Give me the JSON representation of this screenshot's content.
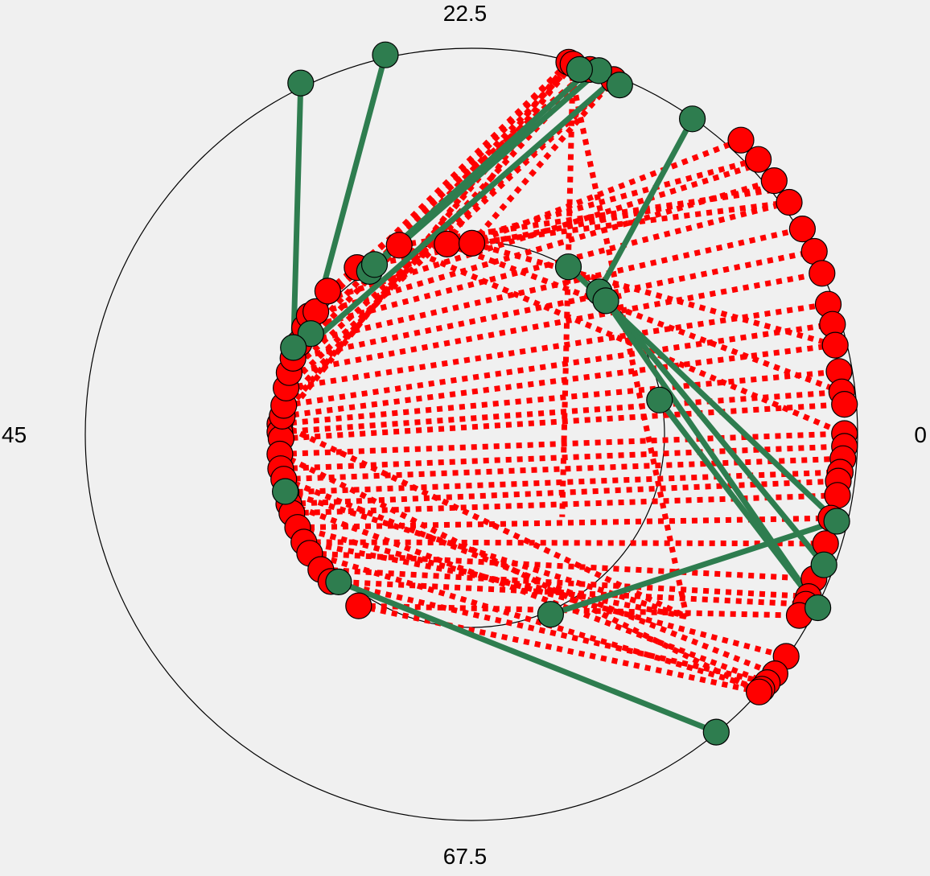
{
  "chart_data": {
    "type": "scatter",
    "subtype": "polar-circle-diagram",
    "title": "",
    "angle_labels": [
      "22.5",
      "45",
      "67.5",
      "0"
    ],
    "grid": true,
    "colors": {
      "background": "#f0f0f0",
      "circle": "#000000",
      "segment_red": "#ff0000",
      "segment_green": "#2e7d4f",
      "marker_red": "#ff0000",
      "marker_green": "#2e7d4f",
      "marker_edge": "#000000"
    },
    "series": [
      {
        "style": "dotted",
        "color": "#ff0000",
        "segments": [
          [
            [
              -0.496,
              0.027
            ],
            [
              0.952,
              0.163
            ]
          ],
          [
            [
              -0.496,
              0.006
            ],
            [
              0.959,
              0.11
            ]
          ],
          [
            [
              -0.493,
              -0.011
            ],
            [
              0.966,
              0.078
            ]
          ],
          [
            [
              -0.49,
              0.047
            ],
            [
              0.942,
              0.231
            ]
          ],
          [
            [
              -0.486,
              0.075
            ],
            [
              0.935,
              0.285
            ]
          ],
          [
            [
              -0.48,
              0.12
            ],
            [
              0.924,
              0.337
            ]
          ],
          [
            [
              -0.472,
              0.16
            ],
            [
              0.908,
              0.417
            ]
          ],
          [
            [
              -0.462,
              0.197
            ],
            [
              0.888,
              0.474
            ]
          ],
          [
            [
              -0.446,
              0.236
            ],
            [
              0.857,
              0.532
            ]
          ],
          [
            [
              -0.432,
              0.276
            ],
            [
              0.823,
              0.601
            ]
          ],
          [
            [
              -0.42,
              0.307
            ],
            [
              0.784,
              0.657
            ]
          ],
          [
            [
              -0.404,
              0.341
            ],
            [
              0.746,
              0.7
            ]
          ],
          [
            [
              -0.496,
              -0.051
            ],
            [
              0.966,
              0.002
            ]
          ],
          [
            [
              -0.494,
              -0.089
            ],
            [
              0.966,
              -0.031
            ]
          ],
          [
            [
              -0.486,
              -0.116
            ],
            [
              0.962,
              -0.063
            ]
          ],
          [
            [
              -0.48,
              -0.15
            ],
            [
              0.955,
              -0.098
            ]
          ],
          [
            [
              -0.473,
              -0.18
            ],
            [
              0.95,
              -0.121
            ]
          ],
          [
            [
              -0.465,
              -0.204
            ],
            [
              0.948,
              -0.158
            ]
          ],
          [
            [
              -0.45,
              -0.241
            ],
            [
              0.931,
              -0.217
            ]
          ],
          [
            [
              -0.434,
              -0.279
            ],
            [
              0.917,
              -0.283
            ]
          ],
          [
            [
              -0.419,
              -0.308
            ],
            [
              0.887,
              -0.374
            ]
          ],
          [
            [
              -0.39,
              -0.35
            ],
            [
              0.873,
              -0.42
            ]
          ],
          [
            [
              -0.364,
              -0.381
            ],
            [
              0.866,
              -0.44
            ]
          ],
          [
            [
              -0.292,
              -0.444
            ],
            [
              0.849,
              -0.469
            ]
          ],
          [
            [
              -0.296,
              0.432
            ],
            [
              0.79,
              0.643
            ]
          ],
          [
            [
              -0.187,
              0.49
            ],
            [
              0.796,
              0.635
            ]
          ],
          [
            [
              -0.063,
              0.493
            ],
            [
              0.743,
              0.712
            ]
          ],
          [
            [
              0.001,
              0.495
            ],
            [
              0.698,
              0.762
            ]
          ],
          [
            [
              -0.496,
              0.027
            ],
            [
              0.252,
              0.964
            ]
          ],
          [
            [
              -0.49,
              0.047
            ],
            [
              0.263,
              0.959
            ]
          ],
          [
            [
              -0.486,
              0.075
            ],
            [
              0.307,
              0.945
            ]
          ],
          [
            [
              -0.48,
              0.12
            ],
            [
              0.368,
              0.919
            ]
          ],
          [
            [
              -0.472,
              0.16
            ],
            [
              0.368,
              0.919
            ]
          ],
          [
            [
              -0.462,
              0.197
            ],
            [
              0.263,
              0.959
            ]
          ],
          [
            [
              -0.446,
              0.236
            ],
            [
              0.252,
              0.964
            ]
          ],
          [
            [
              -0.403,
              0.318
            ],
            [
              0.252,
              0.964
            ]
          ],
          [
            [
              -0.372,
              0.371
            ],
            [
              0.307,
              0.945
            ]
          ],
          [
            [
              -0.496,
              -0.051
            ],
            [
              0.745,
              -0.667
            ]
          ],
          [
            [
              -0.486,
              -0.116
            ],
            [
              0.786,
              -0.62
            ]
          ],
          [
            [
              -0.473,
              -0.18
            ],
            [
              0.766,
              -0.643
            ]
          ],
          [
            [
              -0.45,
              -0.241
            ],
            [
              0.815,
              -0.575
            ]
          ],
          [
            [
              -0.419,
              -0.308
            ],
            [
              0.752,
              -0.66
            ]
          ],
          [
            [
              -0.364,
              -0.381
            ],
            [
              0.766,
              -0.643
            ]
          ],
          [
            [
              -0.292,
              -0.444
            ],
            [
              0.745,
              -0.667
            ]
          ],
          [
            [
              -0.187,
              0.49
            ],
            [
              0.966,
              0.002
            ]
          ],
          [
            [
              -0.063,
              0.493
            ],
            [
              0.959,
              0.11
            ]
          ],
          [
            [
              0.001,
              0.495
            ],
            [
              0.942,
              0.231
            ]
          ],
          [
            [
              0.001,
              0.495
            ],
            [
              0.823,
              0.601
            ]
          ],
          [
            [
              -0.063,
              0.493
            ],
            [
              0.252,
              0.964
            ]
          ],
          [
            [
              0.001,
              0.495
            ],
            [
              0.368,
              0.919
            ]
          ],
          [
            [
              -0.496,
              0.027
            ],
            [
              0.557,
              -0.472
            ]
          ],
          [
            [
              -0.48,
              -0.15
            ],
            [
              0.557,
              -0.472
            ]
          ],
          [
            [
              -0.434,
              -0.279
            ],
            [
              0.557,
              -0.472
            ]
          ],
          [
            [
              0.252,
              0.964
            ],
            [
              0.557,
              -0.472
            ]
          ],
          [
            [
              0.263,
              0.959
            ],
            [
              0.235,
              -0.214
            ]
          ]
        ]
      },
      {
        "style": "solid",
        "color": "#2e7d4f",
        "segments": [
          [
            [
              -0.442,
              0.91
            ],
            [
              -0.461,
              0.225
            ]
          ],
          [
            [
              -0.223,
              0.983
            ],
            [
              -0.416,
              0.261
            ]
          ],
          [
            [
              0.307,
              0.945
            ],
            [
              -0.251,
              0.44
            ]
          ],
          [
            [
              0.33,
              0.942
            ],
            [
              -0.264,
              0.422
            ]
          ],
          [
            [
              0.368,
              0.919
            ],
            [
              -0.466,
              0.193
            ]
          ],
          [
            [
              0.572,
              0.817
            ],
            [
              0.322,
              0.355
            ]
          ],
          [
            [
              0.251,
              0.434
            ],
            [
              0.946,
              -0.225
            ]
          ],
          [
            [
              0.331,
              0.369
            ],
            [
              0.913,
              -0.338
            ]
          ],
          [
            [
              0.348,
              0.346
            ],
            [
              0.897,
              -0.449
            ]
          ],
          [
            [
              0.487,
              0.089
            ],
            [
              0.897,
              -0.449
            ]
          ],
          [
            [
              0.205,
              -0.466
            ],
            [
              0.946,
              -0.225
            ]
          ],
          [
            [
              -0.344,
              -0.382
            ],
            [
              0.634,
              -0.771
            ]
          ]
        ]
      },
      {
        "style": "markers",
        "color": "#ff0000",
        "points": [
          [
            0.252,
            0.964
          ],
          [
            0.263,
            0.959
          ],
          [
            0.307,
            0.945
          ],
          [
            0.33,
            0.942
          ],
          [
            0.368,
            0.919
          ],
          [
            0.698,
            0.762
          ],
          [
            0.743,
            0.712
          ],
          [
            0.784,
            0.657
          ],
          [
            0.823,
            0.601
          ],
          [
            0.857,
            0.532
          ],
          [
            0.888,
            0.474
          ],
          [
            0.908,
            0.417
          ],
          [
            0.924,
            0.337
          ],
          [
            0.935,
            0.285
          ],
          [
            0.942,
            0.231
          ],
          [
            0.952,
            0.163
          ],
          [
            0.959,
            0.11
          ],
          [
            0.966,
            0.078
          ],
          [
            0.966,
            0.002
          ],
          [
            0.966,
            -0.031
          ],
          [
            0.962,
            -0.063
          ],
          [
            0.955,
            -0.098
          ],
          [
            0.95,
            -0.121
          ],
          [
            0.948,
            -0.158
          ],
          [
            0.931,
            -0.217
          ],
          [
            0.917,
            -0.283
          ],
          [
            0.887,
            -0.374
          ],
          [
            0.873,
            -0.42
          ],
          [
            0.866,
            -0.44
          ],
          [
            0.849,
            -0.469
          ],
          [
            0.815,
            -0.575
          ],
          [
            0.786,
            -0.62
          ],
          [
            0.766,
            -0.643
          ],
          [
            0.752,
            -0.66
          ],
          [
            0.745,
            -0.667
          ],
          [
            -0.496,
            0.027
          ],
          [
            -0.496,
            0.006
          ],
          [
            -0.493,
            -0.011
          ],
          [
            -0.49,
            0.047
          ],
          [
            -0.486,
            0.075
          ],
          [
            -0.48,
            0.12
          ],
          [
            -0.472,
            0.16
          ],
          [
            -0.462,
            0.197
          ],
          [
            -0.446,
            0.236
          ],
          [
            -0.432,
            0.276
          ],
          [
            -0.42,
            0.307
          ],
          [
            -0.403,
            0.318
          ],
          [
            -0.372,
            0.371
          ],
          [
            -0.496,
            -0.051
          ],
          [
            -0.494,
            -0.089
          ],
          [
            -0.486,
            -0.116
          ],
          [
            -0.48,
            -0.15
          ],
          [
            -0.473,
            -0.18
          ],
          [
            -0.465,
            -0.204
          ],
          [
            -0.45,
            -0.241
          ],
          [
            -0.434,
            -0.279
          ],
          [
            -0.419,
            -0.308
          ],
          [
            -0.39,
            -0.35
          ],
          [
            -0.364,
            -0.381
          ],
          [
            -0.292,
            -0.444
          ],
          [
            -0.296,
            0.432
          ],
          [
            -0.187,
            0.49
          ],
          [
            -0.063,
            0.493
          ],
          [
            0.001,
            0.495
          ]
        ]
      },
      {
        "style": "markers",
        "color": "#2e7d4f",
        "points": [
          [
            -0.442,
            0.91
          ],
          [
            -0.223,
            0.983
          ],
          [
            0.33,
            0.942
          ],
          [
            0.28,
            0.945
          ],
          [
            0.384,
            0.905
          ],
          [
            0.572,
            0.817
          ],
          [
            -0.264,
            0.422
          ],
          [
            -0.251,
            0.44
          ],
          [
            -0.416,
            0.261
          ],
          [
            -0.461,
            0.225
          ],
          [
            0.251,
            0.434
          ],
          [
            0.331,
            0.369
          ],
          [
            0.348,
            0.346
          ],
          [
            0.487,
            0.089
          ],
          [
            -0.482,
            -0.148
          ],
          [
            -0.344,
            -0.382
          ],
          [
            0.205,
            -0.466
          ],
          [
            0.946,
            -0.225
          ],
          [
            0.913,
            -0.338
          ],
          [
            0.897,
            -0.449
          ],
          [
            0.634,
            -0.771
          ]
        ]
      }
    ]
  }
}
